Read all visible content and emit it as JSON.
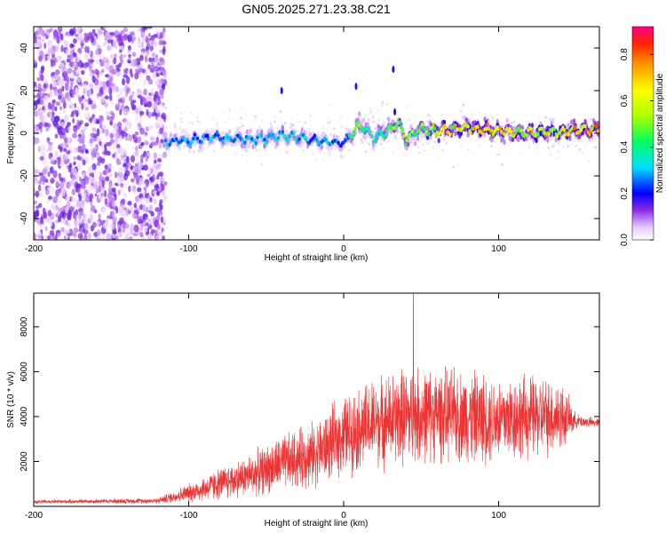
{
  "title": "GN05.2025.271.23.38.C21",
  "chart_data": [
    {
      "type": "heatmap",
      "xlabel": "Height of straight line (km)",
      "ylabel": "Frequency (Hz)",
      "xlim": [
        -200,
        165
      ],
      "ylim": [
        -50,
        50
      ],
      "xticks": [
        -200,
        -100,
        0,
        100
      ],
      "yticks": [
        -40,
        -20,
        0,
        20,
        40
      ],
      "colorbar": {
        "label": "Normalized spectral amplitude",
        "range": [
          0.0,
          0.92
        ],
        "ticks": [
          0.0,
          0.2,
          0.4,
          0.6,
          0.8
        ]
      },
      "ridge": {
        "x": [
          -115,
          -100,
          -80,
          -60,
          -40,
          -20,
          0,
          10,
          20,
          30,
          35,
          40,
          50,
          60,
          80,
          100,
          120,
          140,
          165
        ],
        "freq": [
          -4,
          -3,
          -2,
          -3,
          -1,
          -3,
          -5,
          4,
          -2,
          2,
          5,
          -3,
          2,
          1,
          3,
          1,
          0,
          1,
          2
        ],
        "amplitude": [
          0.3,
          0.35,
          0.3,
          0.35,
          0.4,
          0.35,
          0.3,
          0.55,
          0.4,
          0.5,
          0.6,
          0.55,
          0.6,
          0.7,
          0.75,
          0.8,
          0.7,
          0.75,
          0.8
        ]
      },
      "noise_region_x": [
        -200,
        -115
      ]
    },
    {
      "type": "line",
      "xlabel": "Height of straight line (km)",
      "ylabel": "SNR (10 * v/v)",
      "xlim": [
        -200,
        165
      ],
      "ylim": [
        0,
        9500
      ],
      "xticks": [
        -200,
        -100,
        0,
        100
      ],
      "yticks": [
        2000,
        4000,
        6000,
        8000
      ],
      "color": "#ee3333",
      "envelope": {
        "x": [
          -200,
          -120,
          -100,
          -80,
          -60,
          -40,
          -20,
          -10,
          0,
          20,
          40,
          60,
          80,
          100,
          120,
          140,
          150,
          165
        ],
        "mean": [
          200,
          250,
          600,
          1000,
          1400,
          1900,
          2300,
          2700,
          3200,
          3700,
          4000,
          4100,
          4000,
          3900,
          4000,
          4000,
          3800,
          3700
        ],
        "spread": [
          80,
          120,
          400,
          700,
          900,
          1200,
          1400,
          1500,
          1700,
          1900,
          2100,
          2000,
          2000,
          1900,
          1800,
          1600,
          300,
          200
        ]
      },
      "peak": {
        "x": 45,
        "y": 9500
      }
    }
  ]
}
